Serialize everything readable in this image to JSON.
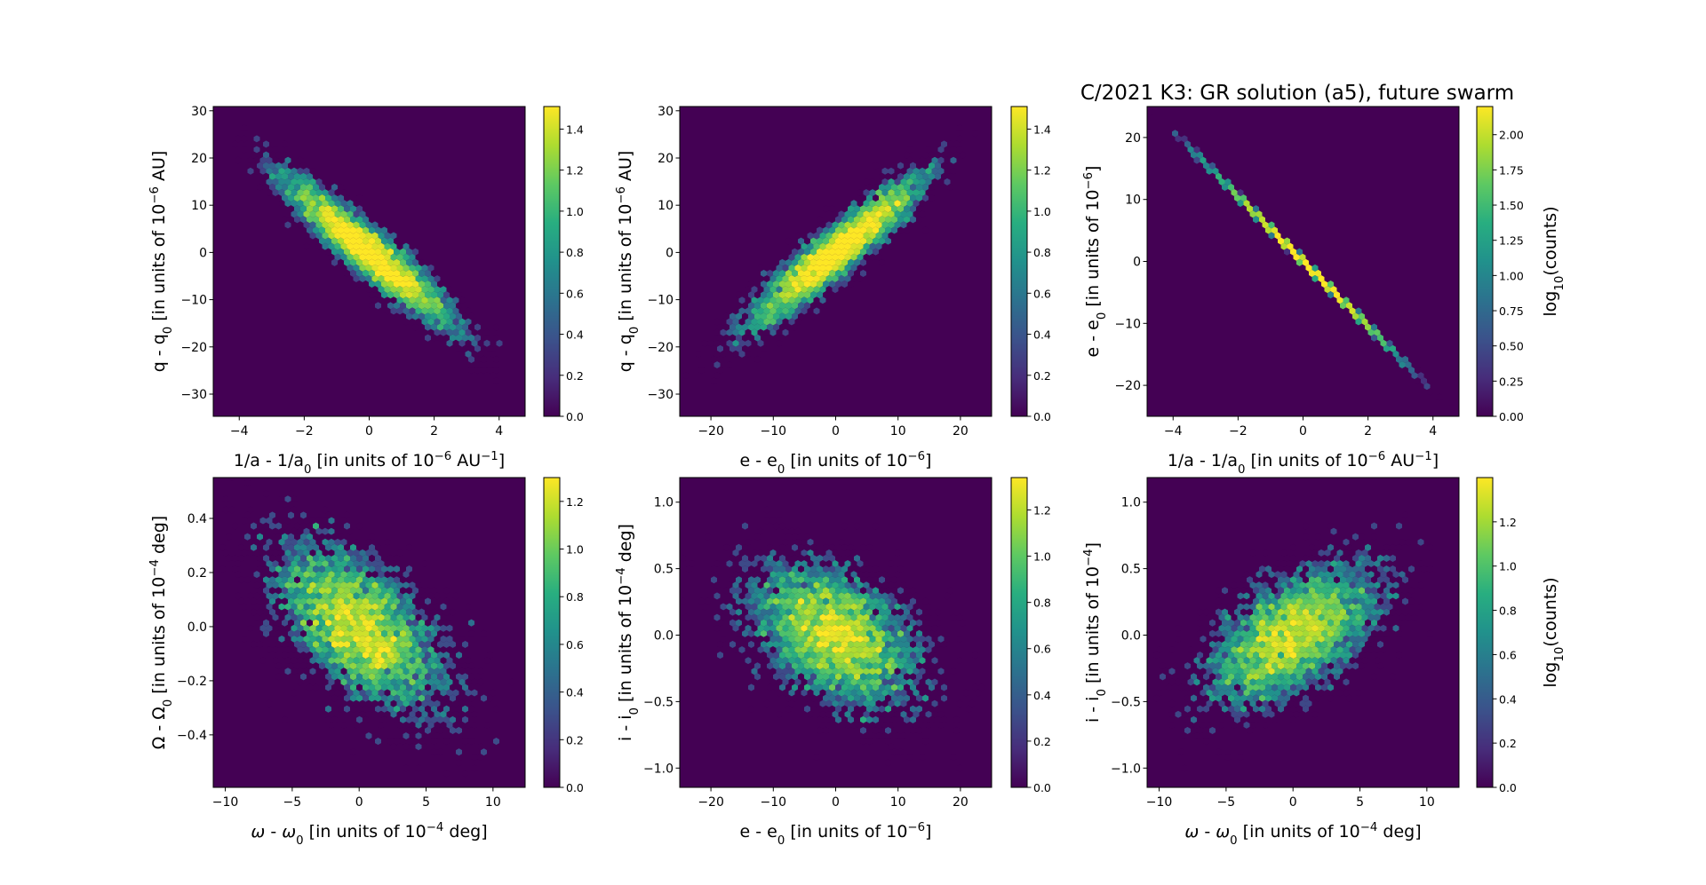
{
  "figure": {
    "title": "C/2021 K3: GR solution (a5), future swarm",
    "colormap": "viridis",
    "background_color": "#440154"
  },
  "chart_data": [
    {
      "type": "heatmap",
      "subtype": "hexbin",
      "xlabel": [
        {
          "t": "1/a - 1/a"
        },
        {
          "sub": "0"
        },
        {
          "t": " [in units of 10"
        },
        {
          "sup": "−6"
        },
        {
          "t": " AU"
        },
        {
          "sup": "−1"
        },
        {
          "t": "]"
        }
      ],
      "ylabel": [
        {
          "t": "q - q"
        },
        {
          "sub": "0"
        },
        {
          "t": " [in units of 10"
        },
        {
          "sup": "−6"
        },
        {
          "t": " AU]"
        }
      ],
      "xlim": [
        -4.8,
        4.8
      ],
      "ylim": [
        -34.7,
        30.9
      ],
      "xticks": [
        -4,
        -2,
        0,
        2,
        4
      ],
      "xticklabels": [
        "−4",
        "−2",
        "0",
        "2",
        "4"
      ],
      "yticks": [
        -30,
        -20,
        -10,
        0,
        10,
        20,
        30
      ],
      "yticklabels": [
        "−30",
        "−20",
        "−10",
        "0",
        "10",
        "20",
        "30"
      ],
      "trend": "strong negative correlation",
      "colorbar": {
        "label": "",
        "range": [
          0,
          1.51
        ],
        "ticks": [
          0,
          0.2,
          0.4,
          0.6,
          0.8,
          1.0,
          1.2,
          1.4
        ],
        "ticklabels": [
          "0.0",
          "0.2",
          "0.4",
          "0.6",
          "0.8",
          "1.0",
          "1.2",
          "1.4"
        ]
      }
    },
    {
      "type": "heatmap",
      "subtype": "hexbin",
      "xlabel": [
        {
          "t": "e - e"
        },
        {
          "sub": "0"
        },
        {
          "t": " [in units of 10"
        },
        {
          "sup": "−6"
        },
        {
          "t": "]"
        }
      ],
      "ylabel": [
        {
          "t": "q - q"
        },
        {
          "sub": "0"
        },
        {
          "t": " [in units of 10"
        },
        {
          "sup": "−6"
        },
        {
          "t": " AU]"
        }
      ],
      "xlim": [
        -25,
        25
      ],
      "ylim": [
        -34.7,
        30.9
      ],
      "xticks": [
        -20,
        -10,
        0,
        10,
        20
      ],
      "xticklabels": [
        "−20",
        "−10",
        "0",
        "10",
        "20"
      ],
      "yticks": [
        -30,
        -20,
        -10,
        0,
        10,
        20,
        30
      ],
      "yticklabels": [
        "−30",
        "−20",
        "−10",
        "0",
        "10",
        "20",
        "30"
      ],
      "trend": "strong positive correlation",
      "colorbar": {
        "label": "",
        "range": [
          0,
          1.51
        ],
        "ticks": [
          0,
          0.2,
          0.4,
          0.6,
          0.8,
          1.0,
          1.2,
          1.4
        ],
        "ticklabels": [
          "0.0",
          "0.2",
          "0.4",
          "0.6",
          "0.8",
          "1.0",
          "1.2",
          "1.4"
        ]
      }
    },
    {
      "type": "heatmap",
      "subtype": "hexbin",
      "xlabel": [
        {
          "t": "1/a - 1/a"
        },
        {
          "sub": "0"
        },
        {
          "t": " [in units of 10"
        },
        {
          "sup": "−6"
        },
        {
          "t": " AU"
        },
        {
          "sup": "−1"
        },
        {
          "t": "]"
        }
      ],
      "ylabel": [
        {
          "t": "e - e"
        },
        {
          "sub": "0"
        },
        {
          "t": " [in units of 10"
        },
        {
          "sup": "−6"
        },
        {
          "t": "]"
        }
      ],
      "xlim": [
        -4.8,
        4.8
      ],
      "ylim": [
        -25,
        25
      ],
      "xticks": [
        -4,
        -2,
        0,
        2,
        4
      ],
      "xticklabels": [
        "−4",
        "−2",
        "0",
        "2",
        "4"
      ],
      "yticks": [
        -20,
        -10,
        0,
        10,
        20
      ],
      "yticklabels": [
        "−20",
        "−10",
        "0",
        "10",
        "20"
      ],
      "trend": "near-perfect linear negative relation",
      "colorbar": {
        "label": [
          {
            "t": "log"
          },
          {
            "sub": "10"
          },
          {
            "t": "(counts)"
          }
        ],
        "range": [
          0,
          2.2
        ],
        "ticks": [
          0,
          0.25,
          0.5,
          0.75,
          1.0,
          1.25,
          1.5,
          1.75,
          2.0
        ],
        "ticklabels": [
          "0.00",
          "0.25",
          "0.50",
          "0.75",
          "1.00",
          "1.25",
          "1.50",
          "1.75",
          "2.00"
        ]
      }
    },
    {
      "type": "heatmap",
      "subtype": "hexbin",
      "xlabel": [
        {
          "it": "ω"
        },
        {
          "t": " - "
        },
        {
          "it": "ω"
        },
        {
          "sub": "0"
        },
        {
          "t": " [in units of 10"
        },
        {
          "sup": "−4"
        },
        {
          "t": " deg]"
        }
      ],
      "ylabel": [
        {
          "t": "Ω - Ω"
        },
        {
          "sub": "0"
        },
        {
          "t": " [in units of 10"
        },
        {
          "sup": "−4"
        },
        {
          "t": " deg]"
        }
      ],
      "xlim": [
        -10.9,
        12.4
      ],
      "ylim": [
        -0.594,
        0.551
      ],
      "xticks": [
        -10,
        -5,
        0,
        5,
        10
      ],
      "xticklabels": [
        "−10",
        "−5",
        "0",
        "5",
        "10"
      ],
      "yticks": [
        -0.4,
        -0.2,
        0,
        0.2,
        0.4
      ],
      "yticklabels": [
        "−0.4",
        "−0.2",
        "0.0",
        "0.2",
        "0.4"
      ],
      "trend": "moderate negative correlation",
      "colorbar": {
        "label": "",
        "range": [
          0,
          1.3
        ],
        "ticks": [
          0,
          0.2,
          0.4,
          0.6,
          0.8,
          1.0,
          1.2
        ],
        "ticklabels": [
          "0.0",
          "0.2",
          "0.4",
          "0.6",
          "0.8",
          "1.0",
          "1.2"
        ]
      }
    },
    {
      "type": "heatmap",
      "subtype": "hexbin",
      "xlabel": [
        {
          "t": "e - e"
        },
        {
          "sub": "0"
        },
        {
          "t": " [in units of 10"
        },
        {
          "sup": "−6"
        },
        {
          "t": "]"
        }
      ],
      "ylabel": [
        {
          "t": "i - i"
        },
        {
          "sub": "0"
        },
        {
          "t": " [in units of 10"
        },
        {
          "sup": "−4"
        },
        {
          "t": " deg]"
        }
      ],
      "xlim": [
        -25,
        25
      ],
      "ylim": [
        -1.145,
        1.185
      ],
      "xticks": [
        -20,
        -10,
        0,
        10,
        20
      ],
      "xticklabels": [
        "−20",
        "−10",
        "0",
        "10",
        "20"
      ],
      "yticks": [
        -1,
        -0.5,
        0,
        0.5,
        1
      ],
      "yticklabels": [
        "−1.0",
        "−0.5",
        "0.0",
        "0.5",
        "1.0"
      ],
      "trend": "weak negative correlation",
      "colorbar": {
        "label": "",
        "range": [
          0,
          1.34
        ],
        "ticks": [
          0,
          0.2,
          0.4,
          0.6,
          0.8,
          1.0,
          1.2
        ],
        "ticklabels": [
          "0.0",
          "0.2",
          "0.4",
          "0.6",
          "0.8",
          "1.0",
          "1.2"
        ]
      }
    },
    {
      "type": "heatmap",
      "subtype": "hexbin",
      "xlabel": [
        {
          "it": "ω"
        },
        {
          "t": " - "
        },
        {
          "it": "ω"
        },
        {
          "sub": "0"
        },
        {
          "t": " [in units of 10"
        },
        {
          "sup": "−4"
        },
        {
          "t": " deg]"
        }
      ],
      "ylabel": [
        {
          "t": "i - i"
        },
        {
          "sub": "0"
        },
        {
          "t": " [in units of 10"
        },
        {
          "sup": "−4"
        },
        {
          "t": "]"
        }
      ],
      "xlim": [
        -10.9,
        12.4
      ],
      "ylim": [
        -1.145,
        1.185
      ],
      "xticks": [
        -10,
        -5,
        0,
        5,
        10
      ],
      "xticklabels": [
        "−10",
        "−5",
        "0",
        "5",
        "10"
      ],
      "yticks": [
        -1,
        -0.5,
        0,
        0.5,
        1
      ],
      "yticklabels": [
        "−1.0",
        "−0.5",
        "0.0",
        "0.5",
        "1.0"
      ],
      "trend": "moderate positive correlation",
      "colorbar": {
        "label": [
          {
            "t": "log"
          },
          {
            "sub": "10"
          },
          {
            "t": "(counts)"
          }
        ],
        "range": [
          0,
          1.4
        ],
        "ticks": [
          0,
          0.2,
          0.4,
          0.6,
          0.8,
          1.0,
          1.2
        ],
        "ticklabels": [
          "0.0",
          "0.2",
          "0.4",
          "0.6",
          "0.8",
          "1.0",
          "1.2"
        ]
      }
    }
  ]
}
